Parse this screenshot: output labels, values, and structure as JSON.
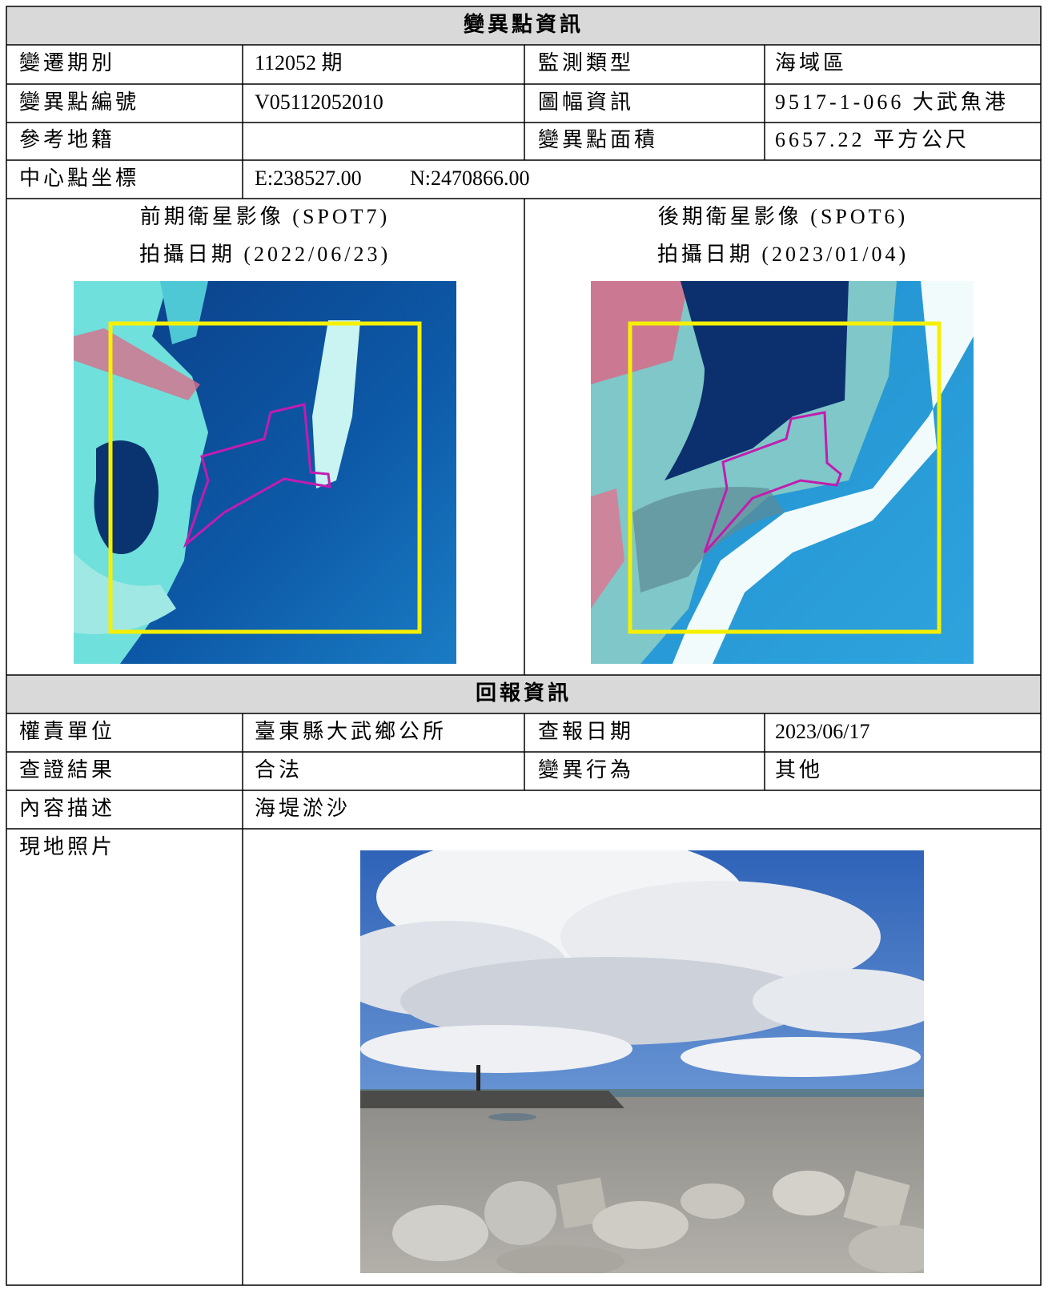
{
  "change_info": {
    "title": "變異點資訊",
    "rows": [
      [
        {
          "label": "變遷期別",
          "value": "112052 期"
        },
        {
          "label": "監測類型",
          "value": "海域區"
        }
      ],
      [
        {
          "label": "變異點編號",
          "value": "V05112052010"
        },
        {
          "label": "圖幅資訊",
          "value": "9517-1-066 大武魚港"
        }
      ],
      [
        {
          "label": "參考地籍"
        },
        {
          "label": "變異點面積",
          "value": "6657.22 平方公尺"
        }
      ]
    ],
    "center": {
      "label": "中心點坐標",
      "e": "E:238527.00",
      "n": "N:2470866.00"
    },
    "images": [
      {
        "caption": "前期衛星影像 (SPOT7)",
        "date": "拍攝日期 (2022/06/23)"
      },
      {
        "caption": "後期衛星影像 (SPOT6)",
        "date": "拍攝日期 (2023/01/04)"
      }
    ]
  },
  "report": {
    "title": "回報資訊",
    "rows": [
      [
        {
          "label": "權責單位",
          "value": "臺東縣大武鄉公所"
        },
        {
          "label": "查報日期",
          "value": "2023/06/17"
        }
      ],
      [
        {
          "label": "查證結果",
          "value": "合法"
        },
        {
          "label": "變異行為",
          "value": "其他"
        }
      ]
    ],
    "description": {
      "label": "內容描述",
      "value": "海堤淤沙"
    },
    "photo_label": "現地照片"
  }
}
